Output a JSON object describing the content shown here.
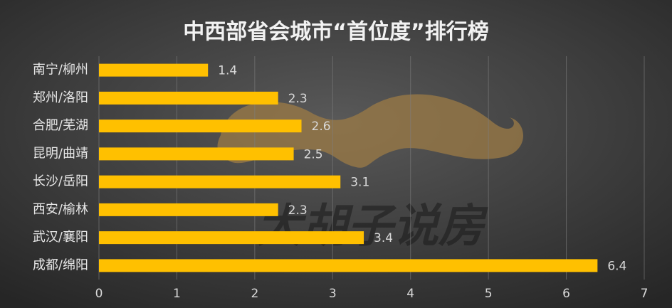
{
  "chart_data": {
    "type": "barh",
    "title": "中西部省会城市“首位度”排行榜",
    "categories": [
      "南宁/柳州",
      "郑州/洛阳",
      "合肥/芜湖",
      "昆明/曲靖",
      "长沙/岳阳",
      "西安/榆林",
      "武汉/襄阳",
      "成都/绵阳"
    ],
    "values": [
      1.4,
      2.3,
      2.6,
      2.5,
      3.1,
      2.3,
      3.4,
      6.4
    ],
    "color": "#ffc000",
    "xlim": [
      0,
      7
    ],
    "xticks": [
      0,
      1,
      2,
      3,
      4,
      5,
      6,
      7
    ],
    "grid": true,
    "watermark": "大胡子说房"
  }
}
